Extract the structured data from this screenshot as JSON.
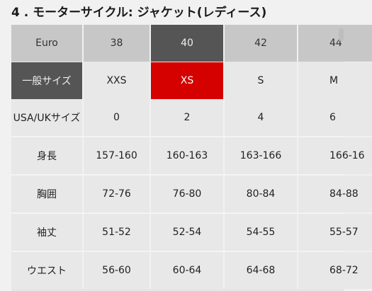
{
  "title": "4 . モーターサイクル: ジャケット(レディース)",
  "table": {
    "header": [
      "Euro",
      "38",
      "40",
      "42",
      "44"
    ],
    "rows": [
      {
        "label": "一般サイズ",
        "cells": [
          "XXS",
          "XS",
          "S",
          "M"
        ]
      },
      {
        "label": "USA/UKサイズ",
        "cells": [
          "0",
          "2",
          "4",
          "6"
        ]
      },
      {
        "label": "身長",
        "cells": [
          "157-160",
          "160-163",
          "163-166",
          "166-16"
        ]
      },
      {
        "label": "胸囲",
        "cells": [
          "72-76",
          "76-80",
          "80-84",
          "84-88"
        ]
      },
      {
        "label": "袖丈",
        "cells": [
          "51-52",
          "52-54",
          "54-55",
          "55-57"
        ]
      },
      {
        "label": "ウエスト",
        "cells": [
          "56-60",
          "60-64",
          "64-68",
          "68-72"
        ]
      }
    ]
  },
  "colors": {
    "selected_header": "#555555",
    "selected_size": "#d50000",
    "row_label_dark": "#555555"
  }
}
